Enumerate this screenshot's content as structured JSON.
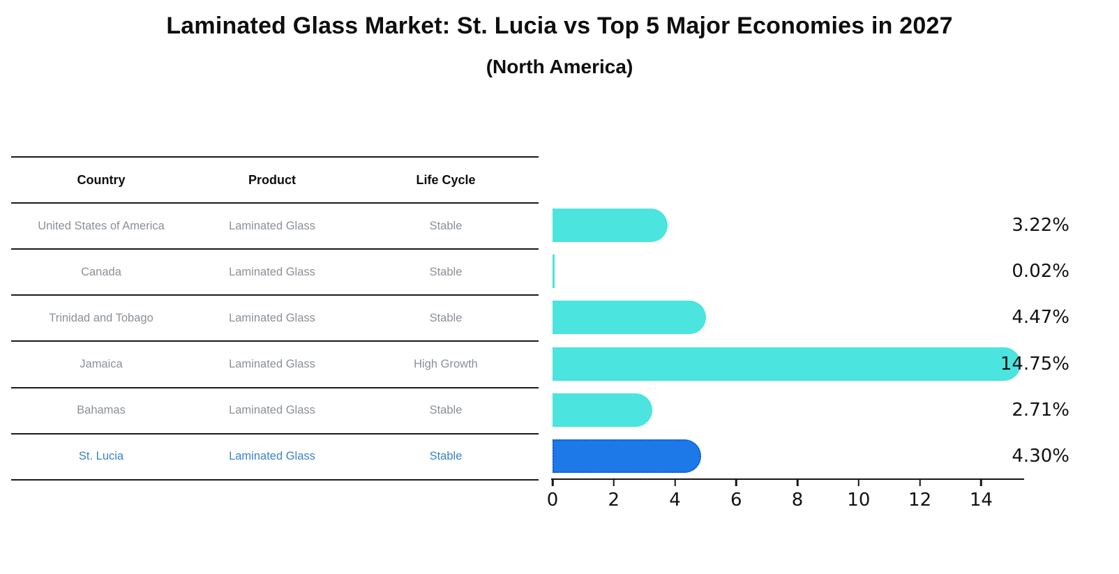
{
  "title": "Laminated Glass Market: St. Lucia vs Top 5 Major Economies in 2027",
  "subtitle": "(North America)",
  "table": {
    "headers": [
      "Country",
      "Product",
      "Life Cycle"
    ],
    "rows": [
      {
        "country": "United States of America",
        "product": "Laminated Glass",
        "life_cycle": "Stable",
        "highlight": false
      },
      {
        "country": "Canada",
        "product": "Laminated Glass",
        "life_cycle": "Stable",
        "highlight": false
      },
      {
        "country": "Trinidad and Tobago",
        "product": "Laminated Glass",
        "life_cycle": "Stable",
        "highlight": false
      },
      {
        "country": "Jamaica",
        "product": "Laminated Glass",
        "life_cycle": "High Growth",
        "highlight": false
      },
      {
        "country": "Bahamas",
        "product": "Laminated Glass",
        "life_cycle": "Stable",
        "highlight": false
      },
      {
        "country": "St. Lucia",
        "product": "Laminated Glass",
        "life_cycle": "Stable",
        "highlight": true
      }
    ]
  },
  "chart_data": {
    "type": "bar",
    "orientation": "horizontal",
    "categories": [
      "United States of America",
      "Canada",
      "Trinidad and Tobago",
      "Jamaica",
      "Bahamas",
      "St. Lucia"
    ],
    "values": [
      3.22,
      0.02,
      4.47,
      14.75,
      2.71,
      4.3
    ],
    "value_labels": [
      "3.22%",
      "0.02%",
      "4.47%",
      "14.75%",
      "2.71%",
      "4.30%"
    ],
    "highlight_index": 5,
    "x_ticks": [
      0,
      2,
      4,
      6,
      8,
      10,
      12,
      14
    ],
    "xlim": [
      0,
      15.45
    ],
    "grid": false,
    "legend": null,
    "title": "Laminated Glass Market: St. Lucia vs Top 5 Major Economies in 2027 (North America)",
    "xlabel": "",
    "ylabel": ""
  },
  "colors": {
    "bar_default": "#4be4df",
    "bar_highlight": "#1e79e8",
    "bar_highlight_border": "#0d5ac9",
    "highlight_text": "#3a82c6",
    "table_text": "#8a9097",
    "line": "#1a1a1a",
    "label_text": "#121212"
  }
}
